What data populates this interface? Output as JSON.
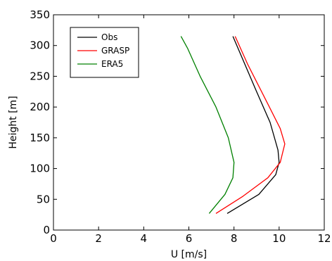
{
  "chart_data": {
    "type": "line",
    "title": "",
    "xlabel": "U [m/s]",
    "ylabel": "Height [m]",
    "xlim": [
      0,
      12
    ],
    "ylim": [
      0,
      350
    ],
    "xticks": [
      0,
      2,
      4,
      6,
      8,
      10,
      12
    ],
    "yticks": [
      0,
      50,
      100,
      150,
      200,
      250,
      300,
      350
    ],
    "legend_position": "top-left",
    "grid": false,
    "series": [
      {
        "name": "Obs",
        "color": "#000000",
        "points": [
          [
            7.7,
            27
          ],
          [
            9.1,
            58
          ],
          [
            9.85,
            90
          ],
          [
            10.0,
            110
          ],
          [
            9.95,
            130
          ],
          [
            9.6,
            175
          ],
          [
            9.0,
            225
          ],
          [
            8.3,
            285
          ],
          [
            7.95,
            315
          ]
        ]
      },
      {
        "name": "GRASP",
        "color": "#ff0000",
        "points": [
          [
            7.2,
            27
          ],
          [
            8.4,
            55
          ],
          [
            9.5,
            85
          ],
          [
            10.05,
            110
          ],
          [
            10.25,
            140
          ],
          [
            10.05,
            165
          ],
          [
            9.5,
            205
          ],
          [
            8.6,
            270
          ],
          [
            8.05,
            315
          ]
        ]
      },
      {
        "name": "ERA5",
        "color": "#008000",
        "points": [
          [
            6.9,
            27
          ],
          [
            7.6,
            58
          ],
          [
            7.95,
            85
          ],
          [
            8.0,
            110
          ],
          [
            7.75,
            150
          ],
          [
            7.2,
            200
          ],
          [
            6.5,
            250
          ],
          [
            5.95,
            295
          ],
          [
            5.65,
            315
          ]
        ]
      }
    ]
  }
}
